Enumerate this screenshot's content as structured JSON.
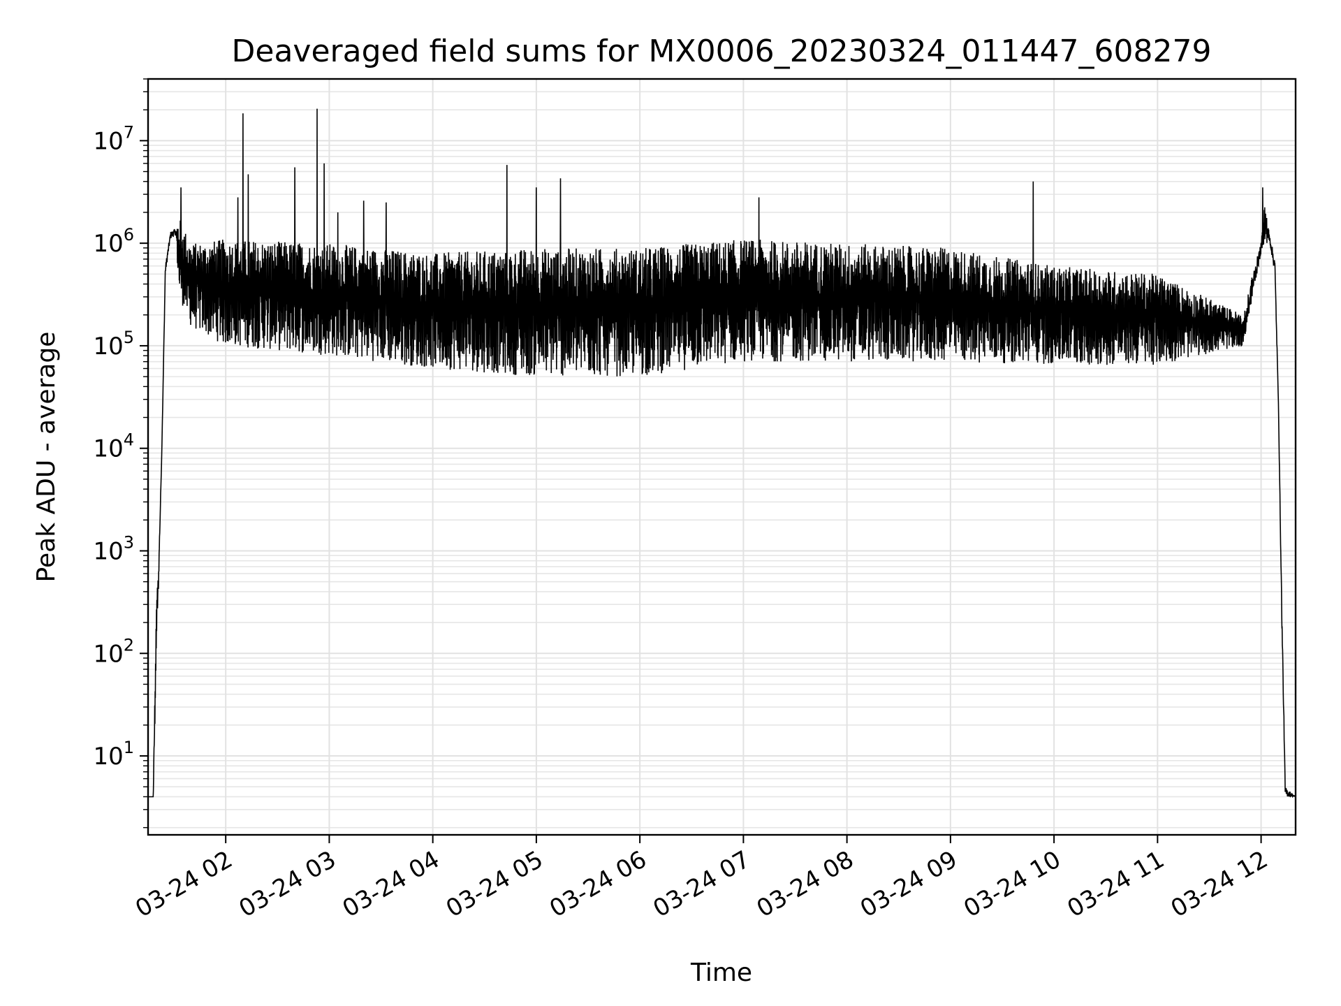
{
  "chart_data": {
    "type": "line",
    "title": "Deaveraged field sums for MX0006_20230324_011447_608279",
    "xlabel": "Time",
    "ylabel": "Peak ADU - average",
    "yscale": "log",
    "ylim": [
      1.7,
      40000000
    ],
    "xlim": [
      "2023-03-24 01:15",
      "2023-03-24 12:20"
    ],
    "grid": true,
    "x_ticks": [
      {
        "at": "2023-03-24 02:00",
        "label": "03-24 02"
      },
      {
        "at": "2023-03-24 03:00",
        "label": "03-24 03"
      },
      {
        "at": "2023-03-24 04:00",
        "label": "03-24 04"
      },
      {
        "at": "2023-03-24 05:00",
        "label": "03-24 05"
      },
      {
        "at": "2023-03-24 06:00",
        "label": "03-24 06"
      },
      {
        "at": "2023-03-24 07:00",
        "label": "03-24 07"
      },
      {
        "at": "2023-03-24 08:00",
        "label": "03-24 08"
      },
      {
        "at": "2023-03-24 09:00",
        "label": "03-24 09"
      },
      {
        "at": "2023-03-24 10:00",
        "label": "03-24 10"
      },
      {
        "at": "2023-03-24 11:00",
        "label": "03-24 11"
      },
      {
        "at": "2023-03-24 12:00",
        "label": "03-24 12"
      }
    ],
    "y_ticks": [
      {
        "value": 10,
        "base": "10",
        "exp": "1"
      },
      {
        "value": 100,
        "base": "10",
        "exp": "2"
      },
      {
        "value": 1000,
        "base": "10",
        "exp": "3"
      },
      {
        "value": 10000,
        "base": "10",
        "exp": "4"
      },
      {
        "value": 100000,
        "base": "10",
        "exp": "5"
      },
      {
        "value": 1000000,
        "base": "10",
        "exp": "6"
      },
      {
        "value": 10000000,
        "base": "10",
        "exp": "7"
      }
    ],
    "series": [
      {
        "color": "#000000",
        "envelope": [
          {
            "x": "2023-03-24 01:15",
            "low": 4,
            "high": 4
          },
          {
            "x": "2023-03-24 01:18",
            "low": 4,
            "high": 4
          },
          {
            "x": "2023-03-24 01:19",
            "low": 20,
            "high": 50
          },
          {
            "x": "2023-03-24 01:20",
            "low": 150,
            "high": 400
          },
          {
            "x": "2023-03-24 01:21",
            "low": 400,
            "high": 600
          },
          {
            "x": "2023-03-24 01:23",
            "low": 10000,
            "high": 10000
          },
          {
            "x": "2023-03-24 01:25",
            "low": 500000,
            "high": 600000
          },
          {
            "x": "2023-03-24 01:28",
            "low": 1100000,
            "high": 1300000
          },
          {
            "x": "2023-03-24 01:31",
            "low": 1200000,
            "high": 1400000
          },
          {
            "x": "2023-03-24 01:33",
            "low": 300000,
            "high": 1800000
          },
          {
            "x": "2023-03-24 01:40",
            "low": 150000,
            "high": 1000000
          },
          {
            "x": "2023-03-24 02:00",
            "low": 100000,
            "high": 1100000
          },
          {
            "x": "2023-03-24 03:00",
            "low": 80000,
            "high": 1000000
          },
          {
            "x": "2023-03-24 04:00",
            "low": 60000,
            "high": 800000
          },
          {
            "x": "2023-03-24 05:00",
            "low": 50000,
            "high": 900000
          },
          {
            "x": "2023-03-24 06:00",
            "low": 50000,
            "high": 900000
          },
          {
            "x": "2023-03-24 07:00",
            "low": 70000,
            "high": 1100000
          },
          {
            "x": "2023-03-24 08:00",
            "low": 70000,
            "high": 1000000
          },
          {
            "x": "2023-03-24 09:00",
            "low": 70000,
            "high": 900000
          },
          {
            "x": "2023-03-24 10:00",
            "low": 65000,
            "high": 600000
          },
          {
            "x": "2023-03-24 11:00",
            "low": 65000,
            "high": 500000
          },
          {
            "x": "2023-03-24 11:50",
            "low": 100000,
            "high": 200000
          },
          {
            "x": "2023-03-24 11:55",
            "low": 300000,
            "high": 500000
          },
          {
            "x": "2023-03-24 12:00",
            "low": 800000,
            "high": 1000000
          },
          {
            "x": "2023-03-24 12:02",
            "low": 1000000,
            "high": 2500000
          },
          {
            "x": "2023-03-24 12:05",
            "low": 1000000,
            "high": 1200000
          },
          {
            "x": "2023-03-24 12:08",
            "low": 500000,
            "high": 700000
          },
          {
            "x": "2023-03-24 12:10",
            "low": 30000,
            "high": 30000
          },
          {
            "x": "2023-03-24 12:12",
            "low": 200,
            "high": 300
          },
          {
            "x": "2023-03-24 12:14",
            "low": 4,
            "high": 5
          },
          {
            "x": "2023-03-24 12:20",
            "low": 4,
            "high": 4
          }
        ],
        "spikes": [
          {
            "x": "2023-03-24 01:34",
            "value": 3500000
          },
          {
            "x": "2023-03-24 02:10",
            "value": 18500000
          },
          {
            "x": "2023-03-24 02:13",
            "value": 4700000
          },
          {
            "x": "2023-03-24 02:07",
            "value": 2800000
          },
          {
            "x": "2023-03-24 02:40",
            "value": 5500000
          },
          {
            "x": "2023-03-24 02:53",
            "value": 20500000
          },
          {
            "x": "2023-03-24 02:57",
            "value": 6000000
          },
          {
            "x": "2023-03-24 03:05",
            "value": 2000000
          },
          {
            "x": "2023-03-24 03:20",
            "value": 2600000
          },
          {
            "x": "2023-03-24 03:33",
            "value": 2500000
          },
          {
            "x": "2023-03-24 04:43",
            "value": 5800000
          },
          {
            "x": "2023-03-24 05:00",
            "value": 3500000
          },
          {
            "x": "2023-03-24 05:14",
            "value": 4300000
          },
          {
            "x": "2023-03-24 07:09",
            "value": 2800000
          },
          {
            "x": "2023-03-24 09:48",
            "value": 4000000
          },
          {
            "x": "2023-03-24 12:01",
            "value": 3500000
          }
        ]
      }
    ]
  }
}
